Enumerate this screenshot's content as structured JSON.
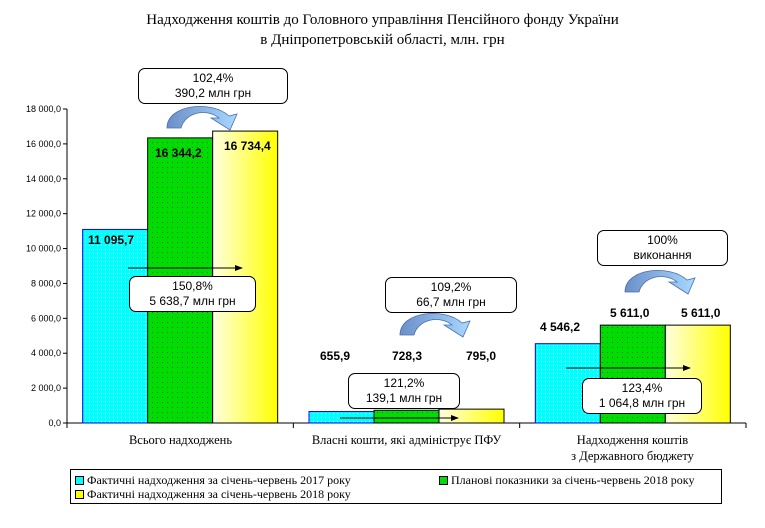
{
  "chart_data": {
    "type": "bar",
    "title_line1": "Надходження коштів до Головного управління Пенсійного фонду України",
    "title_line2": "в Дніпропетровській області, млн. грн",
    "categories": [
      "Всього надходжень",
      "Власні кошти, які адмініструє ПФУ",
      "Надходження коштів з Державного бюджету"
    ],
    "category_lines": [
      [
        "Всього надходжень"
      ],
      [
        "Власні кошти, які адмініструє ПФУ"
      ],
      [
        "Надходження коштів",
        "з Державного бюджету"
      ]
    ],
    "series": [
      {
        "name": "Фактичні надходження за січень-червень 2017 року",
        "values": [
          11095.7,
          655.9,
          4546.2
        ],
        "labels": [
          "11 095,7",
          "655,9",
          "4 546,2"
        ],
        "color": "#00ffff"
      },
      {
        "name": "Планові показники за січень-червень 2018 року",
        "values": [
          16344.2,
          728.3,
          5611.0
        ],
        "labels": [
          "16 344,2",
          "728,3",
          "5 611,0"
        ],
        "color": "#00dd00"
      },
      {
        "name": "Фактичні надходження за січень-червень 2018 року",
        "values": [
          16734.4,
          795.0,
          5611.0
        ],
        "labels": [
          "16 734,4",
          "795,0",
          "5 611,0"
        ],
        "color": "#ffff00"
      }
    ],
    "ylim": [
      0,
      18000
    ],
    "yticks": [
      "0,0",
      "2 000,0",
      "4 000,0",
      "6 000,0",
      "8 000,0",
      "10 000,0",
      "12 000,0",
      "14 000,0",
      "16 000,0",
      "18 000,0"
    ],
    "legend_position": "bottom",
    "annotations": [
      {
        "line1": "102,4%",
        "line2": "390,2 млн грн"
      },
      {
        "line1": "150,8%",
        "line2": "5 638,7 млн грн"
      },
      {
        "line1": "109,2%",
        "line2": "66,7 млн грн"
      },
      {
        "line1": "121,2%",
        "line2": "139,1 млн грн"
      },
      {
        "line1": "100%",
        "line2": "виконання"
      },
      {
        "line1": "123,4%",
        "line2": "1 064,8 млн грн"
      }
    ]
  }
}
